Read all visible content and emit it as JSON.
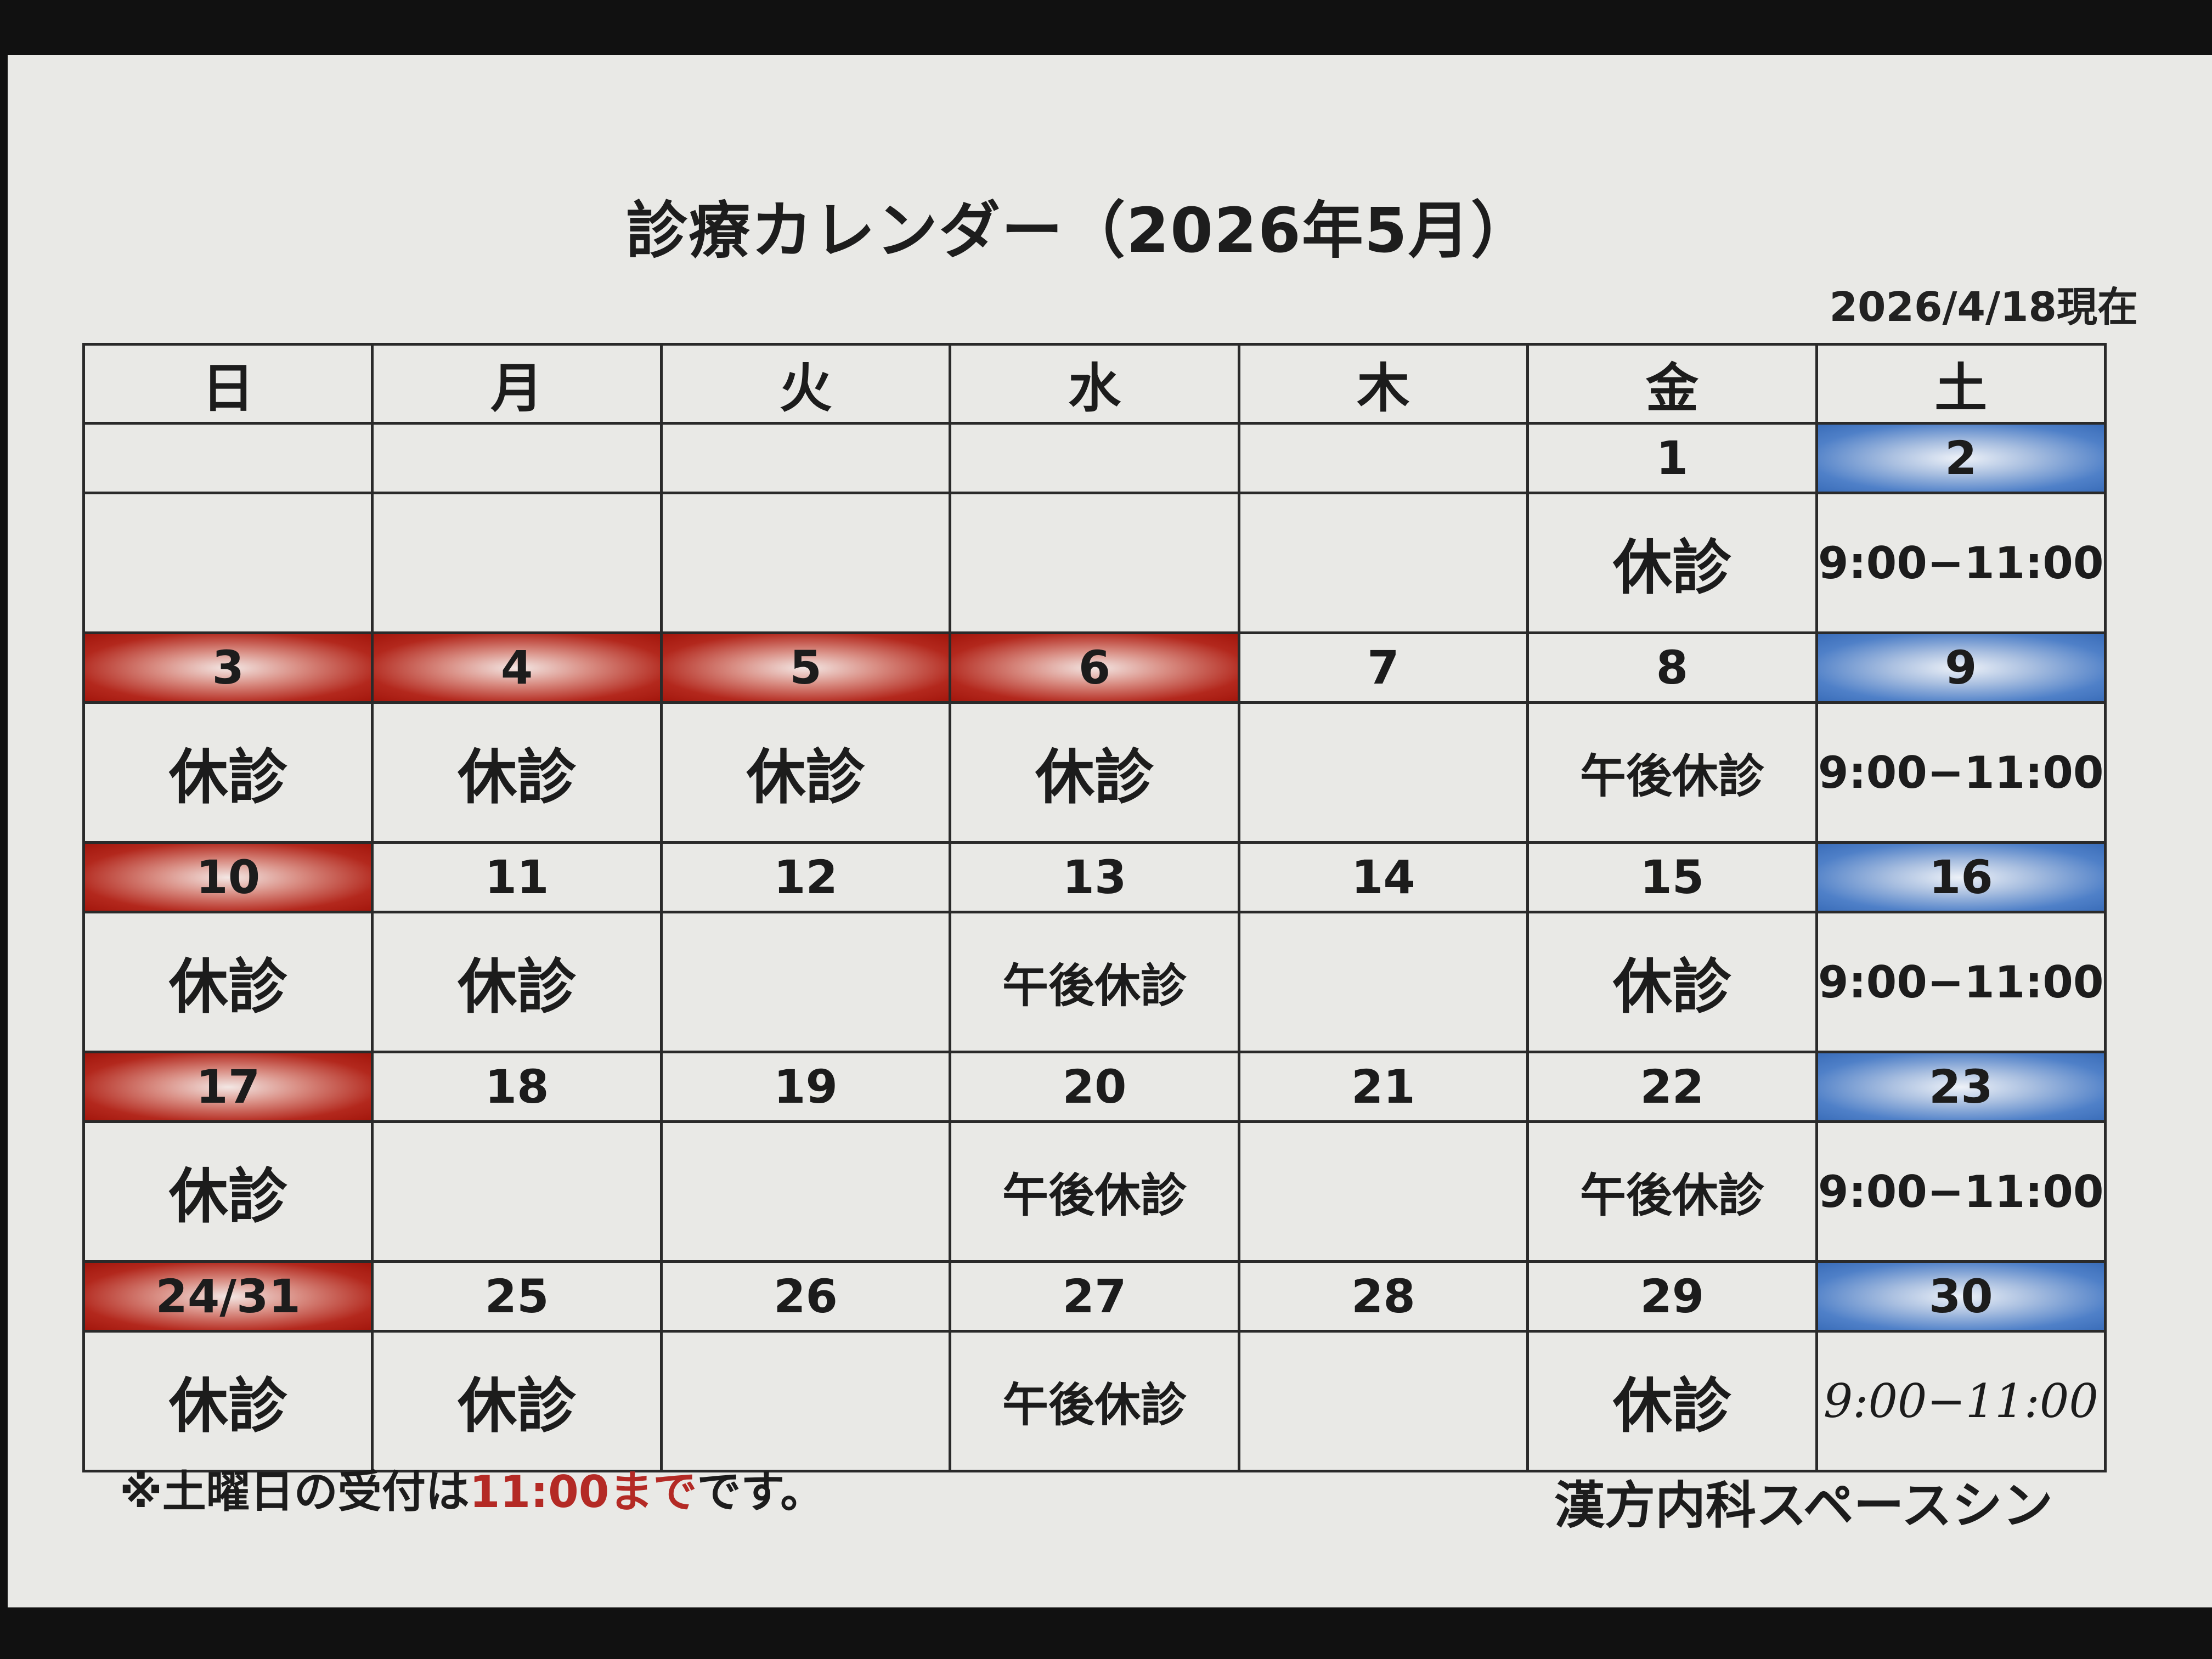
{
  "title": "診療カレンダー（2026年5月）",
  "as_of": "2026/4/18現在",
  "weekdays": [
    "日",
    "月",
    "火",
    "水",
    "木",
    "金",
    "土"
  ],
  "colors": {
    "closed_red": "#b42a25",
    "afternoon_blue": "#1f4e90",
    "saturday_blue": "#4f80c8"
  },
  "weeks": [
    [
      {
        "date": "",
        "header": "none",
        "note": "",
        "note_style": "none"
      },
      {
        "date": "",
        "header": "none",
        "note": "",
        "note_style": "none"
      },
      {
        "date": "",
        "header": "none",
        "note": "",
        "note_style": "none"
      },
      {
        "date": "",
        "header": "none",
        "note": "",
        "note_style": "none"
      },
      {
        "date": "",
        "header": "none",
        "note": "",
        "note_style": "none"
      },
      {
        "date": "1",
        "header": "none",
        "note": "休診",
        "note_style": "red"
      },
      {
        "date": "2",
        "header": "blue",
        "note": "9:00−11:00",
        "note_style": "black"
      }
    ],
    [
      {
        "date": "3",
        "header": "red",
        "note": "休診",
        "note_style": "red"
      },
      {
        "date": "4",
        "header": "red",
        "note": "休診",
        "note_style": "red"
      },
      {
        "date": "5",
        "header": "red",
        "note": "休診",
        "note_style": "red"
      },
      {
        "date": "6",
        "header": "red",
        "note": "休診",
        "note_style": "red"
      },
      {
        "date": "7",
        "header": "none",
        "note": "",
        "note_style": "none"
      },
      {
        "date": "8",
        "header": "none",
        "note": "午後休診",
        "note_style": "blue"
      },
      {
        "date": "9",
        "header": "blue",
        "note": "9:00−11:00",
        "note_style": "black"
      }
    ],
    [
      {
        "date": "10",
        "header": "red",
        "note": "休診",
        "note_style": "red"
      },
      {
        "date": "11",
        "header": "none",
        "note": "休診",
        "note_style": "red"
      },
      {
        "date": "12",
        "header": "none",
        "note": "",
        "note_style": "none"
      },
      {
        "date": "13",
        "header": "none",
        "note": "午後休診",
        "note_style": "blue"
      },
      {
        "date": "14",
        "header": "none",
        "note": "",
        "note_style": "none"
      },
      {
        "date": "15",
        "header": "none",
        "note": "休診",
        "note_style": "red"
      },
      {
        "date": "16",
        "header": "blue",
        "note": "9:00−11:00",
        "note_style": "black"
      }
    ],
    [
      {
        "date": "17",
        "header": "red",
        "note": "休診",
        "note_style": "red"
      },
      {
        "date": "18",
        "header": "none",
        "note": "",
        "note_style": "none"
      },
      {
        "date": "19",
        "header": "none",
        "note": "",
        "note_style": "none"
      },
      {
        "date": "20",
        "header": "none",
        "note": "午後休診",
        "note_style": "blue"
      },
      {
        "date": "21",
        "header": "none",
        "note": "",
        "note_style": "none"
      },
      {
        "date": "22",
        "header": "none",
        "note": "午後休診",
        "note_style": "blue"
      },
      {
        "date": "23",
        "header": "blue",
        "note": "9:00−11:00",
        "note_style": "black"
      }
    ],
    [
      {
        "date": "24/31",
        "header": "red",
        "note": "休診",
        "note_style": "red"
      },
      {
        "date": "25",
        "header": "none",
        "note": "休診",
        "note_style": "red"
      },
      {
        "date": "26",
        "header": "none",
        "note": "",
        "note_style": "none"
      },
      {
        "date": "27",
        "header": "none",
        "note": "午後休診",
        "note_style": "blue"
      },
      {
        "date": "28",
        "header": "none",
        "note": "",
        "note_style": "none"
      },
      {
        "date": "29",
        "header": "none",
        "note": "休診",
        "note_style": "red"
      },
      {
        "date": "30",
        "header": "blue",
        "note": "9:00−11:00",
        "note_style": "hand"
      }
    ]
  ],
  "footnote": {
    "before": "※土曜日の受付は",
    "highlight": "11:00まで",
    "after": "です。"
  },
  "clinic_name": "漢方内科スペースシン"
}
